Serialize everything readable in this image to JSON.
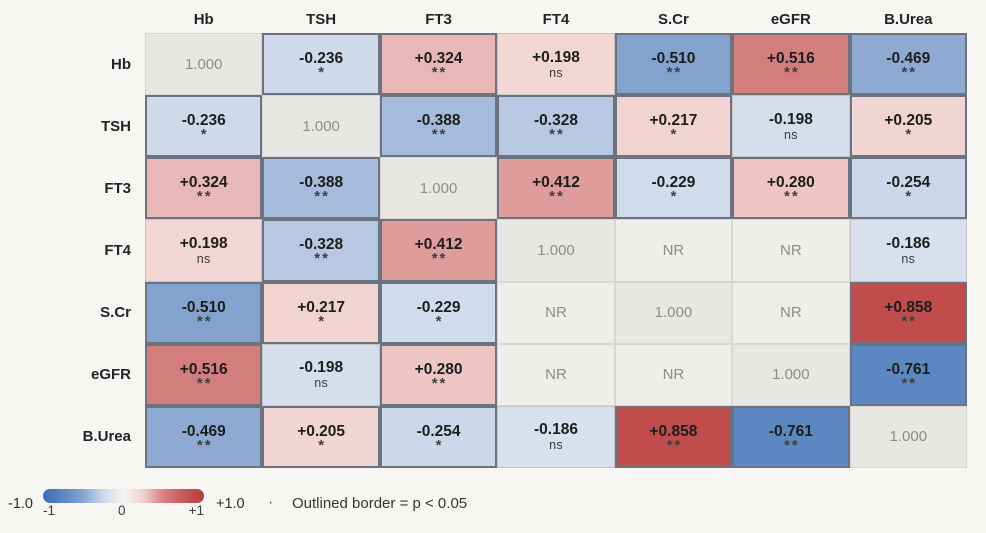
{
  "chart_data": {
    "type": "heatmap",
    "variables": [
      "Hb",
      "TSH",
      "FT3",
      "FT4",
      "S.Cr",
      "eGFR",
      "B.Urea"
    ],
    "range": [
      -1,
      1
    ],
    "rows": [
      {
        "label": "Hb",
        "cells": [
          {
            "text": "1.000",
            "kind": "diag"
          },
          {
            "text": "-0.236",
            "r": -0.236,
            "sig": "*"
          },
          {
            "text": "+0.324",
            "r": 0.324,
            "sig": "**"
          },
          {
            "text": "+0.198",
            "r": 0.198,
            "sig": "ns"
          },
          {
            "text": "-0.510",
            "r": -0.51,
            "sig": "**"
          },
          {
            "text": "+0.516",
            "r": 0.516,
            "sig": "**"
          },
          {
            "text": "-0.469",
            "r": -0.469,
            "sig": "**"
          }
        ]
      },
      {
        "label": "TSH",
        "cells": [
          {
            "text": "-0.236",
            "r": -0.236,
            "sig": "*"
          },
          {
            "text": "1.000",
            "kind": "diag"
          },
          {
            "text": "-0.388",
            "r": -0.388,
            "sig": "**"
          },
          {
            "text": "-0.328",
            "r": -0.328,
            "sig": "**"
          },
          {
            "text": "+0.217",
            "r": 0.217,
            "sig": "*"
          },
          {
            "text": "-0.198",
            "r": -0.198,
            "sig": "ns"
          },
          {
            "text": "+0.205",
            "r": 0.205,
            "sig": "*"
          }
        ]
      },
      {
        "label": "FT3",
        "cells": [
          {
            "text": "+0.324",
            "r": 0.324,
            "sig": "**"
          },
          {
            "text": "-0.388",
            "r": -0.388,
            "sig": "**"
          },
          {
            "text": "1.000",
            "kind": "diag"
          },
          {
            "text": "+0.412",
            "r": 0.412,
            "sig": "**"
          },
          {
            "text": "-0.229",
            "r": -0.229,
            "sig": "*"
          },
          {
            "text": "+0.280",
            "r": 0.28,
            "sig": "**"
          },
          {
            "text": "-0.254",
            "r": -0.254,
            "sig": "*"
          }
        ]
      },
      {
        "label": "FT4",
        "cells": [
          {
            "text": "+0.198",
            "r": 0.198,
            "sig": "ns"
          },
          {
            "text": "-0.328",
            "r": -0.328,
            "sig": "**"
          },
          {
            "text": "+0.412",
            "r": 0.412,
            "sig": "**"
          },
          {
            "text": "1.000",
            "kind": "diag"
          },
          {
            "text": "NR",
            "kind": "nr"
          },
          {
            "text": "NR",
            "kind": "nr"
          },
          {
            "text": "-0.186",
            "r": -0.186,
            "sig": "ns"
          }
        ]
      },
      {
        "label": "S.Cr",
        "cells": [
          {
            "text": "-0.510",
            "r": -0.51,
            "sig": "**"
          },
          {
            "text": "+0.217",
            "r": 0.217,
            "sig": "*"
          },
          {
            "text": "-0.229",
            "r": -0.229,
            "sig": "*"
          },
          {
            "text": "NR",
            "kind": "nr"
          },
          {
            "text": "1.000",
            "kind": "diag"
          },
          {
            "text": "NR",
            "kind": "nr"
          },
          {
            "text": "+0.858",
            "r": 0.858,
            "sig": "**"
          }
        ]
      },
      {
        "label": "eGFR",
        "cells": [
          {
            "text": "+0.516",
            "r": 0.516,
            "sig": "**"
          },
          {
            "text": "-0.198",
            "r": -0.198,
            "sig": "ns"
          },
          {
            "text": "+0.280",
            "r": 0.28,
            "sig": "**"
          },
          {
            "text": "NR",
            "kind": "nr"
          },
          {
            "text": "NR",
            "kind": "nr"
          },
          {
            "text": "1.000",
            "kind": "diag"
          },
          {
            "text": "-0.761",
            "r": -0.761,
            "sig": "**"
          }
        ]
      },
      {
        "label": "B.Urea",
        "cells": [
          {
            "text": "-0.469",
            "r": -0.469,
            "sig": "**"
          },
          {
            "text": "+0.205",
            "r": 0.205,
            "sig": "*"
          },
          {
            "text": "-0.254",
            "r": -0.254,
            "sig": "*"
          },
          {
            "text": "-0.186",
            "r": -0.186,
            "sig": "ns"
          },
          {
            "text": "+0.858",
            "r": 0.858,
            "sig": "**"
          },
          {
            "text": "-0.761",
            "r": -0.761,
            "sig": "**"
          },
          {
            "text": "1.000",
            "kind": "diag"
          }
        ]
      }
    ],
    "colormap": {
      "blue": [
        "#f6f3f1",
        "#ccd9ea",
        "#85a3cf",
        "#5e88c1",
        "#3a6cb5"
      ],
      "red": [
        "#f6f3f1",
        "#f0cfcd",
        "#d4807f",
        "#c65a5c",
        "#b93a36"
      ]
    }
  },
  "legend": {
    "min_label": "-1.0",
    "max_label": "+1.0",
    "ticks": [
      "-1",
      "0",
      "+1"
    ],
    "separator_dot": "·",
    "note": "Outlined border = p < 0.05"
  },
  "colors": {
    "page_bg": "#f8f6f2",
    "value_text": "#1d1d1d",
    "muted_text": "#8d8d89",
    "diag_bg": "#e9e7e3",
    "nr_bg": "#f0eeea",
    "cell_border": "#c6c4c0",
    "light_border": "#d8d6d2",
    "sig_outline": "#6b7280",
    "sig_corner": "#4a5058"
  }
}
